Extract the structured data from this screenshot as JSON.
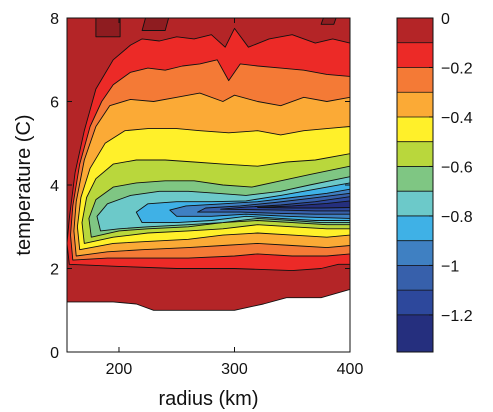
{
  "chart_data": {
    "type": "heatmap",
    "subtype": "filled-contour",
    "title": "",
    "xlabel": "radius (km)",
    "ylabel": "temperature (C)",
    "xlim": [
      155,
      400
    ],
    "ylim": [
      0,
      8
    ],
    "xticks": [
      200,
      300,
      400
    ],
    "yticks": [
      0,
      2,
      4,
      6,
      8
    ],
    "colorbar": {
      "range": [
        -1.35,
        0
      ],
      "ticks": [
        0,
        -0.2,
        -0.4,
        -0.6,
        -0.8,
        -1,
        -1.2
      ],
      "tick_labels": [
        "0",
        "−0.2",
        "−0.4",
        "−0.6",
        "−0.8",
        "−1",
        "−1.2"
      ],
      "levels": [
        {
          "from": -0.1,
          "to": 0,
          "color": "#b42527"
        },
        {
          "from": -0.2,
          "to": -0.1,
          "color": "#ec2a27"
        },
        {
          "from": -0.3,
          "to": -0.2,
          "color": "#f47a36"
        },
        {
          "from": -0.4,
          "to": -0.3,
          "color": "#fbaa36"
        },
        {
          "from": -0.5,
          "to": -0.4,
          "color": "#fff02a"
        },
        {
          "from": -0.6,
          "to": -0.5,
          "color": "#b9d73c"
        },
        {
          "from": -0.7,
          "to": -0.6,
          "color": "#7fc683"
        },
        {
          "from": -0.8,
          "to": -0.7,
          "color": "#6cc9c9"
        },
        {
          "from": -0.9,
          "to": -0.8,
          "color": "#3fb1e6"
        },
        {
          "from": -1.0,
          "to": -0.9,
          "color": "#3f80c2"
        },
        {
          "from": -1.1,
          "to": -1.0,
          "color": "#3760ab"
        },
        {
          "from": -1.2,
          "to": -1.1,
          "color": "#2d489c"
        },
        {
          "from": -1.35,
          "to": -1.2,
          "color": "#252f7e"
        }
      ]
    },
    "regions": [
      {
        "name": "level-0-to-m0.1",
        "color": "#b42527",
        "outline": [
          [
            155,
            1.2
          ],
          [
            155,
            8
          ],
          [
            400,
            8
          ],
          [
            400,
            1.5
          ],
          [
            375,
            1.3
          ],
          [
            345,
            1.3
          ],
          [
            325,
            1.15
          ],
          [
            300,
            1.0
          ],
          [
            270,
            1.0
          ],
          [
            250,
            1.0
          ],
          [
            230,
            1.0
          ],
          [
            215,
            1.15
          ],
          [
            195,
            1.2
          ]
        ]
      },
      {
        "name": "level-m0.1-to-m0.2",
        "color": "#ec2a27",
        "outline": [
          [
            157,
            2.1
          ],
          [
            155,
            2.6
          ],
          [
            157,
            3.2
          ],
          [
            162,
            4.3
          ],
          [
            170,
            5.3
          ],
          [
            180,
            6.3
          ],
          [
            195,
            7.0
          ],
          [
            210,
            7.35
          ],
          [
            220,
            7.5
          ],
          [
            235,
            7.45
          ],
          [
            250,
            7.55
          ],
          [
            265,
            7.5
          ],
          [
            280,
            7.6
          ],
          [
            292,
            7.3
          ],
          [
            300,
            7.75
          ],
          [
            312,
            7.3
          ],
          [
            330,
            7.5
          ],
          [
            350,
            7.6
          ],
          [
            370,
            7.4
          ],
          [
            385,
            7.5
          ],
          [
            400,
            7.4
          ],
          [
            400,
            2.1
          ],
          [
            390,
            2.1
          ],
          [
            375,
            2.0
          ],
          [
            350,
            1.95
          ],
          [
            300,
            2.0
          ],
          [
            250,
            2.0
          ],
          [
            200,
            2.05
          ]
        ]
      },
      {
        "name": "level-m0.2-to-m0.3",
        "color": "#f47a36",
        "outline": [
          [
            160,
            2.2
          ],
          [
            158,
            2.8
          ],
          [
            160,
            3.5
          ],
          [
            166,
            4.5
          ],
          [
            175,
            5.4
          ],
          [
            185,
            6.0
          ],
          [
            195,
            6.4
          ],
          [
            210,
            6.7
          ],
          [
            225,
            6.8
          ],
          [
            240,
            6.75
          ],
          [
            255,
            6.85
          ],
          [
            270,
            6.9
          ],
          [
            285,
            7.0
          ],
          [
            295,
            6.5
          ],
          [
            305,
            6.9
          ],
          [
            320,
            6.85
          ],
          [
            340,
            6.8
          ],
          [
            360,
            6.75
          ],
          [
            380,
            6.65
          ],
          [
            400,
            6.6
          ],
          [
            400,
            2.35
          ],
          [
            380,
            2.3
          ],
          [
            350,
            2.3
          ],
          [
            320,
            2.35
          ],
          [
            300,
            2.3
          ],
          [
            260,
            2.25
          ],
          [
            220,
            2.25
          ],
          [
            190,
            2.25
          ]
        ]
      },
      {
        "name": "level-m0.3-to-m0.4",
        "color": "#fbaa36",
        "outline": [
          [
            163,
            2.3
          ],
          [
            161,
            2.9
          ],
          [
            163,
            3.6
          ],
          [
            170,
            4.6
          ],
          [
            180,
            5.4
          ],
          [
            192,
            5.9
          ],
          [
            210,
            6.05
          ],
          [
            230,
            6.0
          ],
          [
            250,
            6.1
          ],
          [
            270,
            6.2
          ],
          [
            290,
            6.0
          ],
          [
            300,
            6.15
          ],
          [
            320,
            6.0
          ],
          [
            340,
            5.9
          ],
          [
            360,
            6.1
          ],
          [
            380,
            6.0
          ],
          [
            400,
            6.1
          ],
          [
            400,
            2.55
          ],
          [
            380,
            2.5
          ],
          [
            350,
            2.55
          ],
          [
            320,
            2.6
          ],
          [
            290,
            2.55
          ],
          [
            260,
            2.5
          ],
          [
            220,
            2.45
          ],
          [
            190,
            2.4
          ]
        ]
      },
      {
        "name": "level-m0.4-to-m0.5",
        "color": "#fff02a",
        "outline": [
          [
            166,
            2.45
          ],
          [
            164,
            3.0
          ],
          [
            167,
            3.7
          ],
          [
            175,
            4.4
          ],
          [
            188,
            5.0
          ],
          [
            205,
            5.3
          ],
          [
            225,
            5.35
          ],
          [
            250,
            5.35
          ],
          [
            270,
            5.3
          ],
          [
            295,
            5.25
          ],
          [
            320,
            5.3
          ],
          [
            340,
            5.2
          ],
          [
            360,
            5.3
          ],
          [
            380,
            5.35
          ],
          [
            400,
            5.4
          ],
          [
            400,
            2.8
          ],
          [
            380,
            2.75
          ],
          [
            350,
            2.8
          ],
          [
            320,
            2.85
          ],
          [
            290,
            2.8
          ],
          [
            260,
            2.7
          ],
          [
            225,
            2.65
          ],
          [
            195,
            2.6
          ]
        ]
      },
      {
        "name": "level-m0.5-to-m0.6",
        "color": "#b9d73c",
        "outline": [
          [
            170,
            2.6
          ],
          [
            168,
            3.1
          ],
          [
            172,
            3.7
          ],
          [
            180,
            4.15
          ],
          [
            195,
            4.5
          ],
          [
            215,
            4.6
          ],
          [
            240,
            4.6
          ],
          [
            265,
            4.55
          ],
          [
            290,
            4.5
          ],
          [
            320,
            4.45
          ],
          [
            345,
            4.55
          ],
          [
            370,
            4.6
          ],
          [
            400,
            4.75
          ],
          [
            400,
            2.95
          ],
          [
            380,
            2.95
          ],
          [
            350,
            3.0
          ],
          [
            320,
            3.05
          ],
          [
            290,
            2.95
          ],
          [
            260,
            2.9
          ],
          [
            225,
            2.85
          ],
          [
            195,
            2.75
          ]
        ]
      },
      {
        "name": "level-m0.6-to-m0.7",
        "color": "#7fc683",
        "outline": [
          [
            176,
            2.75
          ],
          [
            174,
            3.2
          ],
          [
            180,
            3.65
          ],
          [
            195,
            3.95
          ],
          [
            215,
            4.05
          ],
          [
            240,
            4.1
          ],
          [
            265,
            4.1
          ],
          [
            290,
            4.0
          ],
          [
            315,
            3.95
          ],
          [
            340,
            4.1
          ],
          [
            365,
            4.25
          ],
          [
            400,
            4.45
          ],
          [
            400,
            3.05
          ],
          [
            380,
            3.05
          ],
          [
            350,
            3.1
          ],
          [
            320,
            3.15
          ],
          [
            290,
            3.1
          ],
          [
            260,
            3.0
          ],
          [
            225,
            2.95
          ],
          [
            200,
            2.9
          ]
        ]
      },
      {
        "name": "level-m0.7-to-m0.8",
        "color": "#6cc9c9",
        "outline": [
          [
            184,
            2.9
          ],
          [
            181,
            3.25
          ],
          [
            190,
            3.55
          ],
          [
            210,
            3.75
          ],
          [
            235,
            3.85
          ],
          [
            260,
            3.85
          ],
          [
            285,
            3.8
          ],
          [
            310,
            3.75
          ],
          [
            340,
            3.85
          ],
          [
            365,
            4.0
          ],
          [
            400,
            4.2
          ],
          [
            400,
            3.1
          ],
          [
            375,
            3.1
          ],
          [
            350,
            3.15
          ],
          [
            320,
            3.2
          ],
          [
            290,
            3.1
          ],
          [
            260,
            3.05
          ],
          [
            225,
            3.0
          ],
          [
            200,
            2.95
          ]
        ]
      },
      {
        "name": "level-m0.8-to-m0.9",
        "color": "#3fb1e6",
        "outline": [
          [
            220,
            3.1
          ],
          [
            215,
            3.35
          ],
          [
            225,
            3.55
          ],
          [
            250,
            3.6
          ],
          [
            280,
            3.6
          ],
          [
            310,
            3.62
          ],
          [
            340,
            3.75
          ],
          [
            370,
            3.9
          ],
          [
            400,
            4.05
          ],
          [
            400,
            3.15
          ],
          [
            370,
            3.15
          ],
          [
            340,
            3.2
          ],
          [
            310,
            3.25
          ],
          [
            280,
            3.15
          ],
          [
            250,
            3.1
          ]
        ]
      },
      {
        "name": "level-m0.9-to-m1.0",
        "color": "#3f80c2",
        "outline": [
          [
            250,
            3.25
          ],
          [
            244,
            3.4
          ],
          [
            258,
            3.5
          ],
          [
            290,
            3.55
          ],
          [
            320,
            3.6
          ],
          [
            350,
            3.7
          ],
          [
            380,
            3.8
          ],
          [
            400,
            3.9
          ],
          [
            400,
            3.2
          ],
          [
            375,
            3.22
          ],
          [
            345,
            3.25
          ],
          [
            310,
            3.3
          ],
          [
            280,
            3.25
          ]
        ]
      },
      {
        "name": "level-m1.0-to-m1.1",
        "color": "#3760ab",
        "outline": [
          [
            268,
            3.35
          ],
          [
            275,
            3.45
          ],
          [
            305,
            3.5
          ],
          [
            335,
            3.58
          ],
          [
            365,
            3.68
          ],
          [
            400,
            3.8
          ],
          [
            400,
            3.3
          ],
          [
            370,
            3.3
          ],
          [
            340,
            3.32
          ],
          [
            305,
            3.35
          ]
        ]
      },
      {
        "name": "level-m1.1-to-m1.2",
        "color": "#2d489c",
        "outline": [
          [
            288,
            3.42
          ],
          [
            310,
            3.47
          ],
          [
            340,
            3.52
          ],
          [
            370,
            3.6
          ],
          [
            400,
            3.72
          ],
          [
            400,
            3.38
          ],
          [
            370,
            3.38
          ],
          [
            340,
            3.4
          ],
          [
            310,
            3.41
          ]
        ]
      },
      {
        "name": "level-below-m1.2",
        "color": "#252f7e",
        "outline": [
          [
            320,
            3.46
          ],
          [
            350,
            3.5
          ],
          [
            380,
            3.56
          ],
          [
            400,
            3.62
          ],
          [
            400,
            3.46
          ],
          [
            375,
            3.45
          ],
          [
            350,
            3.45
          ]
        ]
      },
      {
        "name": "patch-top-1",
        "color": "#8e1c20",
        "outline": [
          [
            180,
            7.55
          ],
          [
            180,
            8
          ],
          [
            201,
            8
          ],
          [
            201,
            7.55
          ]
        ]
      },
      {
        "name": "patch-top-2",
        "color": "#8e1c20",
        "outline": [
          [
            220,
            7.7
          ],
          [
            223,
            8
          ],
          [
            243,
            8
          ],
          [
            240,
            7.7
          ]
        ]
      },
      {
        "name": "patch-top-3",
        "color": "#8e1c20",
        "outline": [
          [
            375,
            7.85
          ],
          [
            377,
            8
          ],
          [
            388,
            8
          ],
          [
            386,
            7.85
          ]
        ]
      }
    ]
  }
}
